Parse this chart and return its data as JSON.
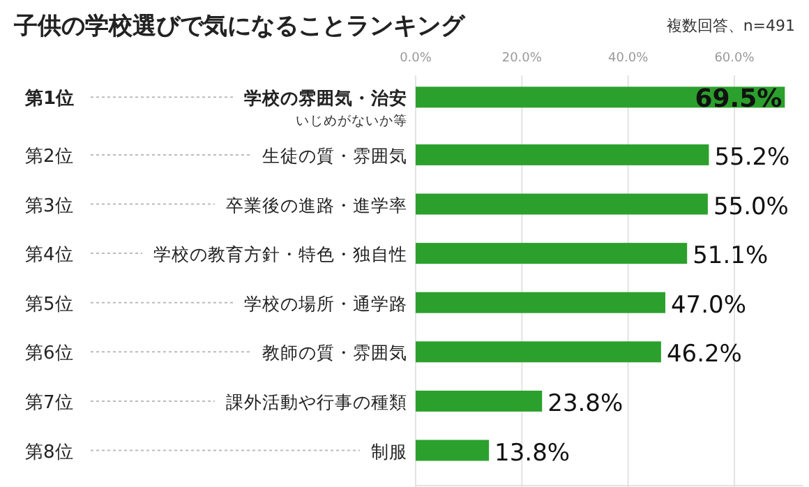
{
  "chart_data": {
    "type": "bar",
    "orientation": "horizontal",
    "title": "子供の学校選びで気になることランキング",
    "categories": [
      "学校の雰囲気・治安",
      "生徒の質・雰囲気",
      "卒業後の進路・進学率",
      "学校の教育方針・特色・独自性",
      "学校の場所・通学路",
      "教師の質・雰囲気",
      "課外活動や行事の種類",
      "制服"
    ],
    "values": [
      69.5,
      55.2,
      55.0,
      51.1,
      47.0,
      46.2,
      23.8,
      13.8
    ],
    "value_labels": [
      "69.5%",
      "55.2%",
      "55.0%",
      "51.1%",
      "47.0%",
      "46.2%",
      "23.8%",
      "13.8%"
    ],
    "color": "#2ca02c",
    "xlim": [
      0,
      73
    ],
    "xticks": [
      {
        "value": 0,
        "label": "0.0%"
      },
      {
        "value": 20,
        "label": "20.0%"
      },
      {
        "value": 40,
        "label": "40.0%"
      },
      {
        "value": 60,
        "label": "60.0%"
      }
    ],
    "grid": "x",
    "annotations": [
      "複数回答、n=491",
      "いじめがないか等",
      "第1位",
      "第2位",
      "第3位",
      "第4位",
      "第5位",
      "第6位",
      "第7位",
      "第8位"
    ]
  }
}
